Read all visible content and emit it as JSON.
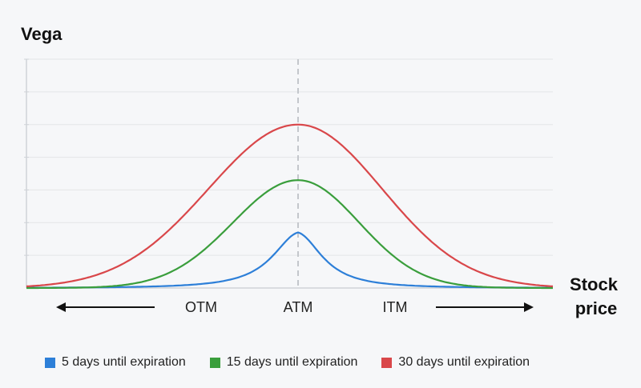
{
  "chart_data": {
    "type": "line",
    "ylabel": "Vega",
    "xlabel_lines": [
      "Stock",
      "price"
    ],
    "region_labels": [
      "OTM",
      "ATM",
      "ITM"
    ],
    "x_domain": [
      -1,
      1
    ],
    "ylim": [
      0,
      7
    ],
    "atm_marker_x": 0,
    "grid": true,
    "legend_position": "bottom",
    "series": [
      {
        "name": "5 days until expiration",
        "color": "#2d7fd8",
        "peak": 1.7,
        "width": 0.12,
        "shape": "cusp"
      },
      {
        "name": "15 days until expiration",
        "color": "#3a9e3c",
        "peak": 3.3,
        "width": 0.24,
        "shape": "bell"
      },
      {
        "name": "30 days until expiration",
        "color": "#d9474a",
        "peak": 5.0,
        "width": 0.33,
        "shape": "bell"
      }
    ]
  }
}
